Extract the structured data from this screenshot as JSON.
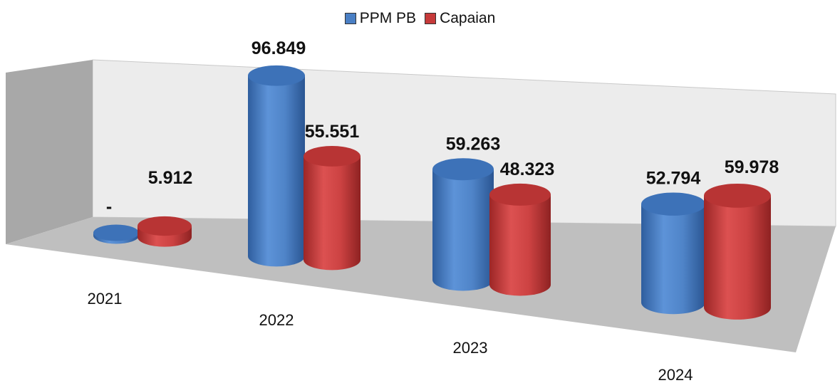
{
  "chart_data": {
    "type": "bar",
    "style": "3d-cylinder",
    "categories": [
      "2021",
      "2022",
      "2023",
      "2024"
    ],
    "series": [
      {
        "name": "PPM PB",
        "color": "#4a7fc4",
        "values": [
          0,
          96.849,
          59.263,
          52.794
        ],
        "labels": [
          "-",
          "96.849",
          "59.263",
          "52.794"
        ]
      },
      {
        "name": "Capaian",
        "color": "#c63a3a",
        "values": [
          5.912,
          55.551,
          48.323,
          59.978
        ],
        "labels": [
          "5.912",
          "55.551",
          "48.323",
          "59.978"
        ]
      }
    ],
    "ylim": [
      0,
      100
    ],
    "legend_position": "top",
    "gridlines": false
  }
}
